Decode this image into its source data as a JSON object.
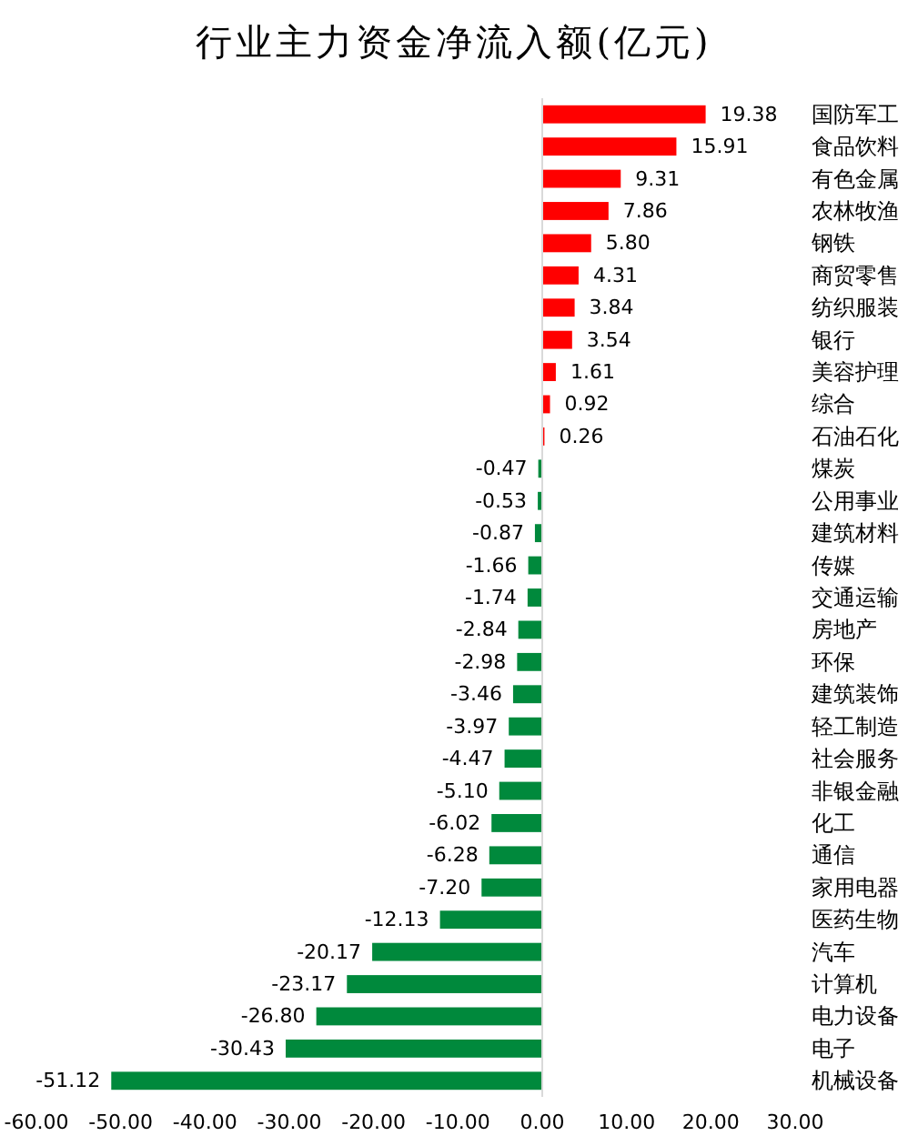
{
  "chart_data": {
    "type": "bar",
    "orientation": "horizontal",
    "title": "行业主力资金净流入额(亿元)",
    "categories": [
      "国防军工",
      "食品饮料",
      "有色金属",
      "农林牧渔",
      "钢铁",
      "商贸零售",
      "纺织服装",
      "银行",
      "美容护理",
      "综合",
      "石油石化",
      "煤炭",
      "公用事业",
      "建筑材料",
      "传媒",
      "交通运输",
      "房地产",
      "环保",
      "建筑装饰",
      "轻工制造",
      "社会服务",
      "非银金融",
      "化工",
      "通信",
      "家用电器",
      "医药生物",
      "汽车",
      "计算机",
      "电力设备",
      "电子",
      "机械设备"
    ],
    "values": [
      19.38,
      15.91,
      9.31,
      7.86,
      5.8,
      4.31,
      3.84,
      3.54,
      1.61,
      0.92,
      0.26,
      -0.47,
      -0.53,
      -0.87,
      -1.66,
      -1.74,
      -2.84,
      -2.98,
      -3.46,
      -3.97,
      -4.47,
      -5.1,
      -6.02,
      -6.28,
      -7.2,
      -12.13,
      -20.17,
      -23.17,
      -26.8,
      -30.43,
      -51.12
    ],
    "value_labels": [
      "19.38",
      "15.91",
      "9.31",
      "7.86",
      "5.80",
      "4.31",
      "3.84",
      "3.54",
      "1.61",
      "0.92",
      "0.26",
      "-0.47",
      "-0.53",
      "-0.87",
      "-1.66",
      "-1.74",
      "-2.84",
      "-2.98",
      "-3.46",
      "-3.97",
      "-4.47",
      "-5.10",
      "-6.02",
      "-6.28",
      "-7.20",
      "-12.13",
      "-20.17",
      "-23.17",
      "-26.80",
      "-30.43",
      "-51.12"
    ],
    "colors": [
      "#ff0000",
      "#ff0000",
      "#ff0000",
      "#ff0000",
      "#ff0000",
      "#ff0000",
      "#ff0000",
      "#ff0000",
      "#ff0000",
      "#ff0000",
      "#ff0000",
      "#00893c",
      "#00893c",
      "#00893c",
      "#00893c",
      "#00893c",
      "#00893c",
      "#00893c",
      "#00893c",
      "#00893c",
      "#00893c",
      "#00893c",
      "#00893c",
      "#00893c",
      "#00893c",
      "#00893c",
      "#00893c",
      "#00893c",
      "#00893c",
      "#00893c",
      "#00893c"
    ],
    "xlim": [
      -60,
      30
    ],
    "xticks": [
      {
        "value": -60,
        "label": "-60.00"
      },
      {
        "value": -50,
        "label": "-50.00"
      },
      {
        "value": -40,
        "label": "-40.00"
      },
      {
        "value": -30,
        "label": "-30.00"
      },
      {
        "value": -20,
        "label": "-20.00"
      },
      {
        "value": -10,
        "label": "-10.00"
      },
      {
        "value": 0,
        "label": "0.00"
      },
      {
        "value": 10,
        "label": "10.00"
      },
      {
        "value": 20,
        "label": "20.00"
      },
      {
        "value": 30,
        "label": "30.00"
      }
    ]
  }
}
